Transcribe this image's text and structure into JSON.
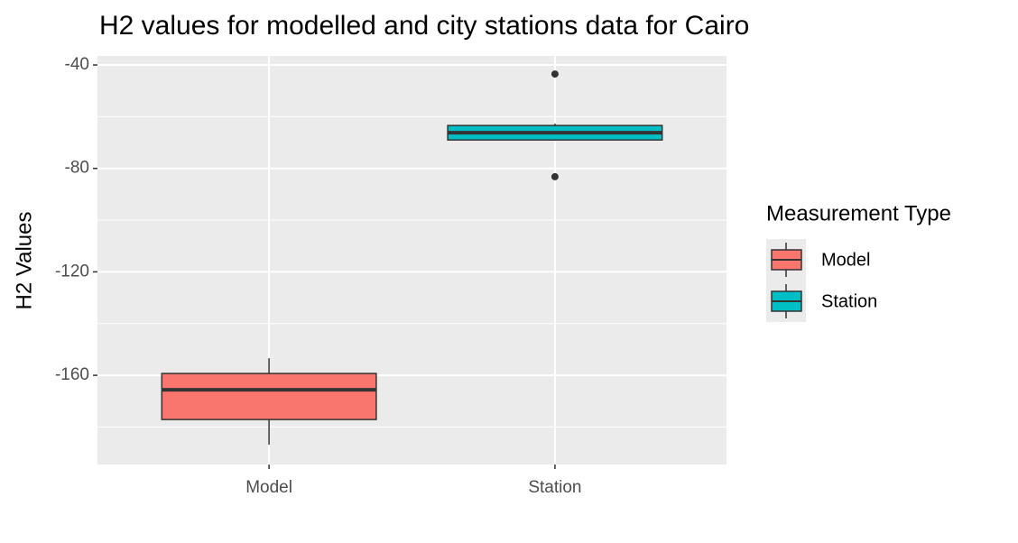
{
  "chart_data": {
    "type": "box",
    "title": "H2 values for modelled and city stations data for Cairo",
    "y_label": "H2 Values",
    "categories": [
      "Model",
      "Station"
    ],
    "colors": [
      "#f8766d",
      "#00bfc4"
    ],
    "boxes": [
      {
        "whisker_low": -186.8,
        "q1": -177.1,
        "median": -165.6,
        "q3": -159.3,
        "whisker_high": -153.4,
        "outliers": []
      },
      {
        "whisker_low": -69.3,
        "q1": -69.0,
        "median": -66.2,
        "q3": -63.4,
        "whisker_high": -62.7,
        "outliers": [
          -43.5,
          -83.2
        ]
      }
    ],
    "ylim": [
      -194.5,
      -36.5
    ],
    "yticks": [
      -40,
      -80,
      -120,
      -160
    ],
    "minor_yticks": [
      -60,
      -100,
      -140,
      -180
    ],
    "grid": true,
    "legend_title": "Measurement Type",
    "legend_position": "right"
  }
}
